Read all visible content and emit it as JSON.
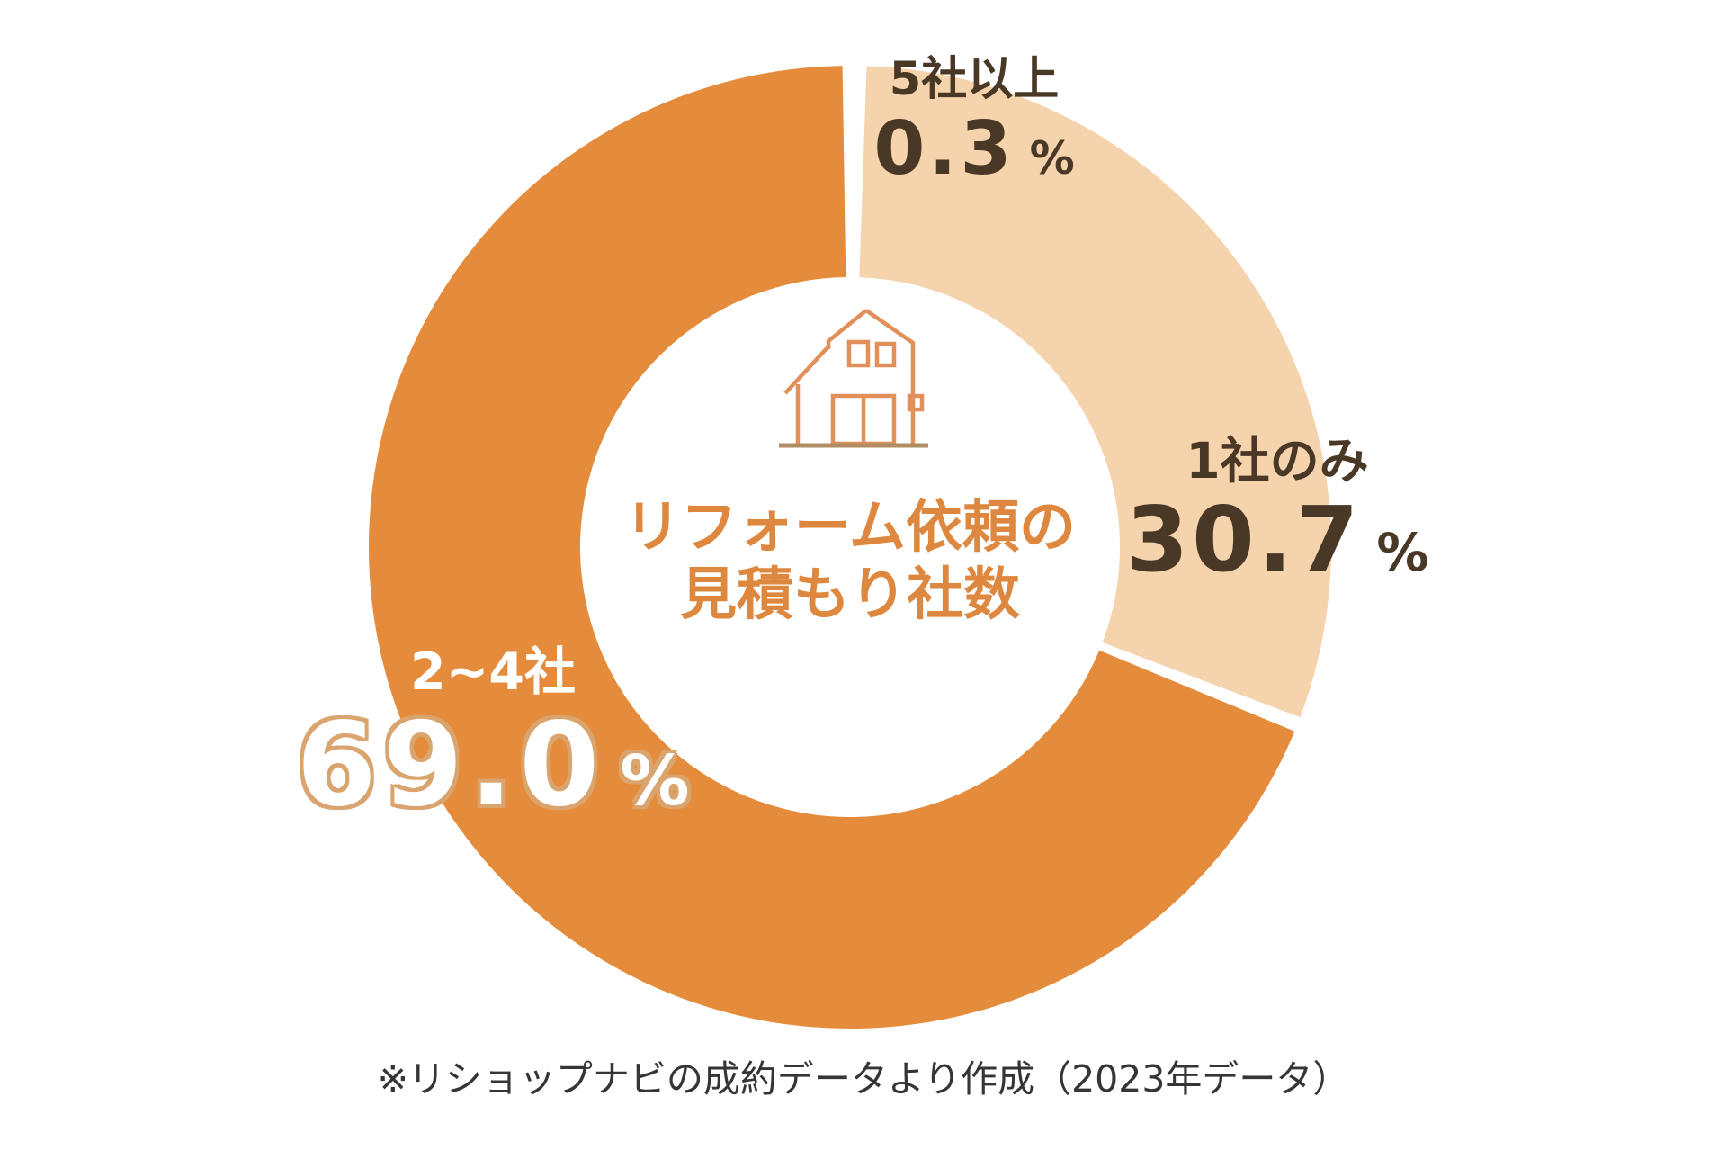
{
  "chart_data": {
    "type": "pie",
    "donut": true,
    "title": "リフォーム依頼の見積もり社数",
    "start_angle_deg": 0,
    "direction": "clockwise",
    "legend_position": "none",
    "unit": "%",
    "slices": [
      {
        "label": "5社以上",
        "value": 0.3,
        "value_display": "0.3",
        "color": "#FFFFFF"
      },
      {
        "label": "1社のみ",
        "value": 30.7,
        "value_display": "30.7",
        "color": "#F5D3AC"
      },
      {
        "label": "2~4社",
        "value": 69.0,
        "value_display": "69.0",
        "color": "#E58C3C"
      }
    ]
  },
  "center": {
    "title_line1": "リフォーム依頼の",
    "title_line2": "見積もり社数",
    "icon": "house-icon"
  },
  "unit_percent": "%",
  "footnote": "※リショップナビの成約データより作成（2023年データ）",
  "colors": {
    "segment_orange": "#E58C3C",
    "segment_peach": "#F5D3AC",
    "label_dark_brown": "#4A3826",
    "label_white": "#FFFFFF",
    "label_outline_tan": "#D9A46E",
    "center_title_orange": "#DE873E",
    "house_icon_stroke": "#E2905A",
    "footnote_gray": "#353535",
    "background": "#FFFFFF"
  }
}
